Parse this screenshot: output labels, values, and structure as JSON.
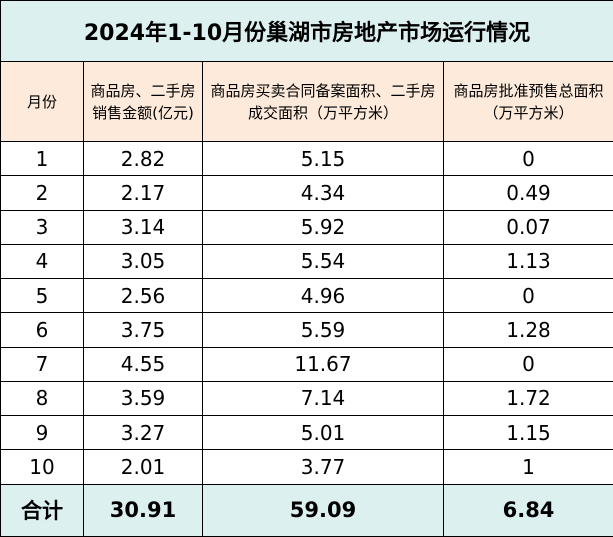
{
  "table": {
    "title": "2024年1-10月份巢湖市房地产市场运行情况",
    "columns": [
      "月份",
      "商品房、二手房销售金额(亿元)",
      "商品房买卖合同备案面积、二手房成交面积（万平方米）",
      "商品房批准预售总面积（万平方米）"
    ],
    "rows": [
      [
        "1",
        "2.82",
        "5.15",
        "0"
      ],
      [
        "2",
        "2.17",
        "4.34",
        "0.49"
      ],
      [
        "3",
        "3.14",
        "5.92",
        "0.07"
      ],
      [
        "4",
        "3.05",
        "5.54",
        "1.13"
      ],
      [
        "5",
        "2.56",
        "4.96",
        "0"
      ],
      [
        "6",
        "3.75",
        "5.59",
        "1.28"
      ],
      [
        "7",
        "4.55",
        "11.67",
        "0"
      ],
      [
        "8",
        "3.59",
        "7.14",
        "1.72"
      ],
      [
        "9",
        "3.27",
        "5.01",
        "1.15"
      ],
      [
        "10",
        "2.01",
        "3.77",
        "1"
      ]
    ],
    "total": [
      "合计",
      "30.91",
      "59.09",
      "6.84"
    ]
  }
}
